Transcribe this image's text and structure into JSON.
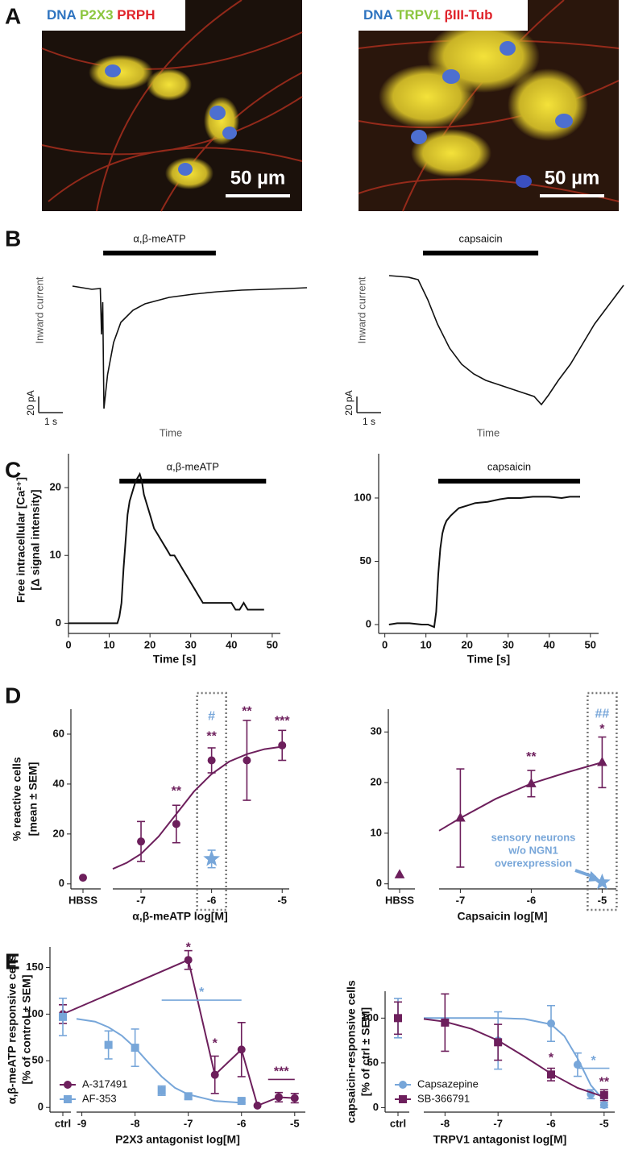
{
  "panel_labels": [
    "A",
    "B",
    "C",
    "D",
    "E"
  ],
  "images": [
    {
      "labels": [
        {
          "text": "DNA",
          "color": "#2f74c0"
        },
        {
          "text": "P2X3",
          "color": "#8cc63f"
        },
        {
          "text": "PRPH",
          "color": "#e0242b"
        }
      ],
      "scale_bar": "50 µm"
    },
    {
      "labels": [
        {
          "text": "DNA",
          "color": "#2f74c0"
        },
        {
          "text": "TRPV1",
          "color": "#8cc63f"
        },
        {
          "text": "βIII-Tub",
          "color": "#e0242b"
        }
      ],
      "scale_bar": "50 µm"
    }
  ],
  "chart_data": [
    {
      "type": "trace",
      "application": {
        "label": "α,β-meATP",
        "start": 1.27,
        "end": 5.93
      },
      "ylabel": "Inward current",
      "xlabel": "Time",
      "scale_bar": {
        "y": 20,
        "y_label": "20 pA",
        "x": 1,
        "x_label": "1 s"
      },
      "color": "#111111",
      "x": [
        0,
        0.8,
        1.15,
        1.2,
        1.25,
        1.3,
        1.45,
        1.7,
        2.0,
        2.5,
        3,
        4,
        5,
        6,
        7,
        8,
        9,
        9.7
      ],
      "values": [
        0,
        -4,
        -3,
        -60,
        -20,
        -152,
        -110,
        -70,
        -45,
        -30,
        -22,
        -14,
        -10,
        -7,
        -5,
        -4,
        -3,
        -2
      ]
    },
    {
      "type": "trace",
      "application": {
        "label": "capsaicin",
        "start": 1.4,
        "end": 6.17
      },
      "ylabel": "Inward current",
      "xlabel": "Time",
      "scale_bar": {
        "y": 20,
        "y_label": "20 pA",
        "x": 1,
        "x_label": "1 s"
      },
      "color": "#111111",
      "x": [
        0,
        0.8,
        1.2,
        1.6,
        2,
        2.5,
        3,
        3.5,
        4,
        4.5,
        5,
        5.5,
        6,
        6.3,
        6.6,
        7,
        7.5,
        8,
        8.5,
        9,
        9.5,
        9.7
      ],
      "values": [
        0,
        -2,
        -5,
        -30,
        -60,
        -90,
        -110,
        -122,
        -130,
        -135,
        -140,
        -145,
        -150,
        -160,
        -148,
        -130,
        -110,
        -85,
        -60,
        -40,
        -20,
        -12
      ]
    },
    {
      "type": "line",
      "ylabel": [
        "Free intracellular [Ca²⁺]",
        "[Δ signal intensity]"
      ],
      "xlabel": "Time [s]",
      "application": {
        "label": "α,β-meATP",
        "start": 12.5,
        "end": 48.5
      },
      "xlim": [
        0,
        52
      ],
      "xticks": [
        0,
        10,
        20,
        30,
        40,
        50
      ],
      "ylim": [
        -1.5,
        25
      ],
      "yticks": [
        0,
        10,
        20
      ],
      "color": "#111111",
      "x": [
        0,
        2,
        4,
        6,
        8,
        10,
        11,
        12,
        12.5,
        13,
        13.5,
        14,
        14.5,
        15,
        15.5,
        16,
        16.5,
        17,
        17.5,
        18,
        18.5,
        19,
        20,
        21,
        22,
        23,
        24,
        25,
        26,
        27,
        28,
        29,
        30,
        31,
        32,
        33,
        35,
        38,
        40,
        41,
        42,
        43,
        44,
        45,
        46,
        48
      ],
      "values": [
        0,
        0,
        0,
        0,
        0,
        0,
        0,
        0,
        1,
        3,
        8,
        12,
        16,
        18,
        19,
        20,
        21,
        21.5,
        22,
        21,
        19,
        18,
        16,
        14,
        13,
        12,
        11,
        10,
        10,
        9,
        8,
        7,
        6,
        5,
        4,
        3,
        3,
        3,
        3,
        2,
        2,
        3,
        2,
        2,
        2,
        2
      ]
    },
    {
      "type": "line",
      "xlabel": "Time [s]",
      "application": {
        "label": "capsaicin",
        "start": 13,
        "end": 47.5
      },
      "xlim": [
        -1.5,
        52
      ],
      "xticks": [
        0,
        10,
        20,
        30,
        40,
        50
      ],
      "ylim": [
        -7,
        135
      ],
      "yticks": [
        0,
        50,
        100
      ],
      "color": "#111111",
      "x": [
        1,
        3,
        6,
        9,
        10.5,
        12,
        12.5,
        13,
        13.5,
        14,
        14.5,
        15,
        16,
        17,
        18,
        20,
        22,
        25,
        28,
        30,
        33,
        36,
        40,
        43,
        45,
        47.5
      ],
      "values": [
        0,
        1,
        1,
        0,
        0,
        -2,
        10,
        40,
        60,
        72,
        78,
        82,
        86,
        89,
        92,
        94,
        96,
        97,
        99,
        100,
        100,
        101,
        101,
        100,
        101,
        101
      ]
    },
    {
      "type": "dose",
      "ref_label": "HBSS",
      "xlabel": "α,β-meATP log[M]",
      "ylabel": [
        "% reactive cells",
        "[mean ± SEM]"
      ],
      "xlim": [
        -7.4,
        -4.9
      ],
      "xticks": [
        -7,
        -6,
        -5
      ],
      "ylim": [
        -2,
        70
      ],
      "yticks": [
        0,
        20,
        40,
        60
      ],
      "highlight": -6,
      "series": [
        {
          "color": "#6d1f5c",
          "marker": "circle",
          "ref_value": 2.5,
          "x": [
            -7,
            -6.5,
            -6,
            -5.5,
            -5
          ],
          "values": [
            17,
            24,
            49.5,
            49.5,
            55.5
          ],
          "errors": [
            8,
            7.5,
            5,
            16,
            6
          ],
          "fit": {
            "x": [
              -7.4,
              -7.2,
              -7,
              -6.75,
              -6.5,
              -6.25,
              -6,
              -5.75,
              -5.5,
              -5.25,
              -5
            ],
            "values": [
              6,
              8.5,
              12,
              19,
              28,
              37,
              44,
              49,
              52,
              54,
              55
            ]
          }
        },
        {
          "color": "#77a6d9",
          "marker": "star",
          "x": [
            -6
          ],
          "values": [
            10
          ],
          "errors": [
            3.5
          ]
        }
      ],
      "annotations": [
        {
          "text": "**",
          "x": -6.5,
          "y": 37,
          "color": "#6d1f5c"
        },
        {
          "text": "**",
          "x": -6,
          "y": 59,
          "color": "#6d1f5c"
        },
        {
          "text": "#",
          "x": -6,
          "y": 67,
          "color": "#77a6d9"
        },
        {
          "text": "**",
          "x": -5.5,
          "y": 69,
          "color": "#6d1f5c"
        },
        {
          "text": "***",
          "x": -5,
          "y": 65,
          "color": "#6d1f5c"
        }
      ]
    },
    {
      "type": "dose",
      "ref_label": "HBSS",
      "xlabel": "Capsaicin log[M]",
      "xlim": [
        -7.3,
        -4.8
      ],
      "xticks": [
        -7,
        -6,
        -5
      ],
      "ylim": [
        -1,
        34.5
      ],
      "yticks": [
        0,
        10,
        20,
        30
      ],
      "highlight": -5,
      "series": [
        {
          "color": "#6d1f5c",
          "marker": "triangle",
          "ref_value": 1.8,
          "x": [
            -7,
            -6,
            -5
          ],
          "values": [
            13,
            19.8,
            24
          ],
          "errors": [
            9.7,
            2.6,
            5
          ],
          "fit": {
            "x": [
              -7.3,
              -7,
              -6.5,
              -6,
              -5.5,
              -5
            ],
            "values": [
              10.5,
              13,
              16.8,
              19.8,
              22,
              24
            ]
          }
        },
        {
          "color": "#77a6d9",
          "marker": "star",
          "x": [
            -5
          ],
          "values": [
            0.3
          ],
          "errors": [
            0
          ]
        }
      ],
      "annotations": [
        {
          "text": "**",
          "x": -6,
          "y": 25,
          "color": "#6d1f5c"
        },
        {
          "text": "*",
          "x": -5,
          "y": 30.5,
          "color": "#6d1f5c"
        },
        {
          "text": "##",
          "x": -5,
          "y": 33.5,
          "color": "#77a6d9"
        }
      ],
      "note": {
        "lines": [
          "sensory neurons",
          "w/o NGN1",
          "overexpression"
        ],
        "color": "#77a6d9"
      }
    },
    {
      "type": "dose",
      "ref_label": "ctrl",
      "xlabel": "P2X3 antagonist log[M]",
      "ylabel": [
        "α,β-meATP responsive cells",
        "[% of control ± SEM]"
      ],
      "xlim": [
        -9.1,
        -4.8
      ],
      "xticks": [
        -9,
        -8,
        -7,
        -6,
        -5
      ],
      "ylim": [
        -5,
        172
      ],
      "yticks": [
        0,
        50,
        100,
        150
      ],
      "legend": "lower left",
      "series": [
        {
          "name": "A-317491",
          "color": "#6d1f5c",
          "marker": "circle",
          "connect": true,
          "ref_value": 100,
          "ref_error": 10,
          "x": [
            -7,
            -6.5,
            -6,
            -5.7,
            -5.3,
            -5
          ],
          "values": [
            158,
            35,
            62,
            2,
            11,
            10
          ],
          "errors": [
            10,
            20,
            29,
            0,
            5,
            5
          ]
        },
        {
          "name": "AF-353",
          "color": "#77a6d9",
          "marker": "square",
          "ref_value": 97,
          "ref_error": 20,
          "x": [
            -8.5,
            -8,
            -7.5,
            -7,
            -6
          ],
          "values": [
            67,
            64,
            18,
            12,
            7
          ],
          "errors": [
            15,
            20,
            5,
            3,
            2
          ],
          "fit": {
            "x": [
              -9.1,
              -8.75,
              -8.5,
              -8.25,
              -8,
              -7.75,
              -7.5,
              -7.25,
              -7,
              -6.5,
              -6
            ],
            "values": [
              95,
              92,
              86,
              77,
              64,
              48,
              33,
              21,
              14,
              7,
              5
            ]
          }
        }
      ],
      "annotations": [
        {
          "text": "*",
          "x": -7,
          "y": 171,
          "color": "#6d1f5c"
        },
        {
          "text": "*",
          "x": -6.5,
          "y": 68,
          "color": "#6d1f5c"
        }
      ],
      "brackets": [
        {
          "text": "*",
          "x0": -7.5,
          "x1": -6,
          "y": 115,
          "color": "#77a6d9"
        },
        {
          "text": "***",
          "x0": -5.5,
          "x1": -5,
          "y": 30,
          "color": "#6d1f5c"
        }
      ]
    },
    {
      "type": "dose",
      "ref_label": "ctrl",
      "xlabel": "TRPV1 antagonist log[M]",
      "ylabel": [
        "capsaicin-responsive cells",
        "[% of ctrl ± SEM]"
      ],
      "xlim": [
        -8.4,
        -4.8
      ],
      "xticks": [
        -8,
        -7,
        -6,
        -5
      ],
      "ylim": [
        -5,
        130
      ],
      "yticks": [
        0,
        50,
        100
      ],
      "legend": "lower left",
      "series": [
        {
          "name": "Capsazepine",
          "color": "#77a6d9",
          "marker": "circle",
          "ref_value": 100,
          "ref_error": 22,
          "x": [
            -7,
            -6,
            -5.5,
            -5.25,
            -5
          ],
          "values": [
            75,
            94,
            48,
            15,
            3
          ],
          "errors": [
            32,
            20,
            13,
            5,
            3
          ],
          "fit": {
            "x": [
              -8.4,
              -7,
              -6.5,
              -6,
              -5.75,
              -5.5,
              -5.25,
              -5
            ],
            "values": [
              100,
              100,
              99,
              93,
              80,
              55,
              25,
              8
            ]
          }
        },
        {
          "name": "SB-366791",
          "color": "#6d1f5c",
          "marker": "square",
          "ref_value": 100,
          "ref_error": 18,
          "x": [
            -8,
            -7,
            -6,
            -5
          ],
          "values": [
            95,
            73,
            37,
            14
          ],
          "errors": [
            32,
            20,
            7,
            6
          ],
          "fit": {
            "x": [
              -8.4,
              -8,
              -7.5,
              -7,
              -6.5,
              -6,
              -5.5,
              -5
            ],
            "values": [
              99,
              96,
              88,
              75,
              57,
              38,
              22,
              12
            ]
          }
        }
      ],
      "annotations": [
        {
          "text": "*",
          "x": -6,
          "y": 55,
          "color": "#6d1f5c"
        },
        {
          "text": "**",
          "x": -5,
          "y": 28,
          "color": "#6d1f5c"
        }
      ],
      "brackets": [
        {
          "text": "*",
          "x0": -5.5,
          "x1": -4.9,
          "y": 44,
          "color": "#77a6d9"
        }
      ]
    }
  ]
}
